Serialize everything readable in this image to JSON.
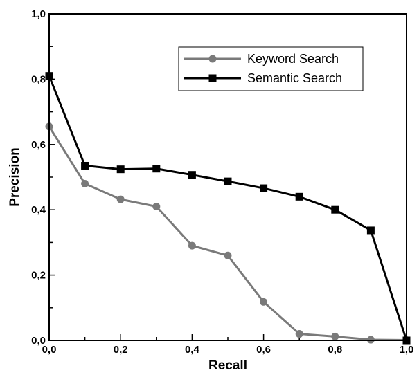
{
  "chart_data": {
    "type": "line",
    "title": "",
    "xlabel": "Recall",
    "ylabel": "Precision",
    "xlim": [
      0,
      1
    ],
    "ylim": [
      0,
      1
    ],
    "xticks": [
      "0,0",
      "0,2",
      "0,4",
      "0,6",
      "0,8",
      "1,0"
    ],
    "yticks": [
      "0,0",
      "0,2",
      "0,4",
      "0,6",
      "0,8",
      "1,0"
    ],
    "grid": false,
    "legend_position": "top-right",
    "x": [
      0.0,
      0.1,
      0.2,
      0.3,
      0.4,
      0.5,
      0.6,
      0.7,
      0.8,
      0.9,
      1.0
    ],
    "series": [
      {
        "name": "Keyword Search",
        "color": "#7a7a7a",
        "marker": "circle",
        "values": [
          0.655,
          0.48,
          0.432,
          0.41,
          0.29,
          0.26,
          0.118,
          0.02,
          0.012,
          0.002,
          0.001
        ]
      },
      {
        "name": "Semantic Search",
        "color": "#000000",
        "marker": "square",
        "values": [
          0.81,
          0.535,
          0.524,
          0.526,
          0.507,
          0.487,
          0.466,
          0.44,
          0.4,
          0.337,
          0.0
        ]
      }
    ]
  }
}
